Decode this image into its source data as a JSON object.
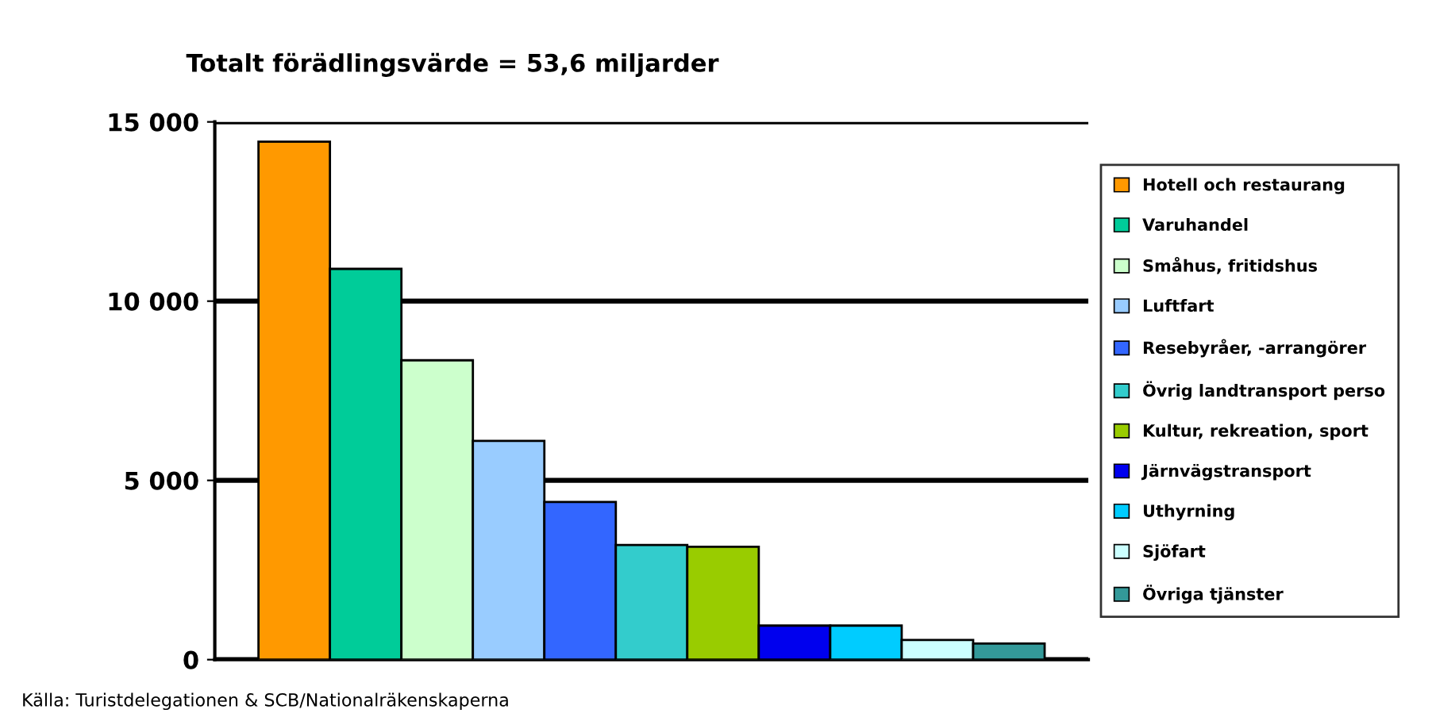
{
  "chart_data": {
    "type": "bar",
    "title": "Totalt förädlingsvärde = 53,6 miljarder",
    "categories": [
      null
    ],
    "series": [
      {
        "name": "Hotell och restaurang",
        "color": "#ff9900",
        "values": [
          14450
        ]
      },
      {
        "name": "Varuhandel",
        "color": "#00cc99",
        "values": [
          10900
        ]
      },
      {
        "name": "Småhus, fritidshus",
        "color": "#ccffcc",
        "values": [
          8350
        ]
      },
      {
        "name": "Luftfart",
        "color": "#99ccff",
        "values": [
          6100
        ]
      },
      {
        "name": "Resebyråer, -arrangörer",
        "color": "#3366ff",
        "values": [
          4400
        ]
      },
      {
        "name": "Övrig landtransport perso",
        "color": "#33cccc",
        "values": [
          3200
        ]
      },
      {
        "name": "Kultur, rekreation, sport",
        "color": "#99cc00",
        "values": [
          3150
        ]
      },
      {
        "name": "Järnvägstransport",
        "color": "#0000ee",
        "values": [
          950
        ]
      },
      {
        "name": "Uthyrning",
        "color": "#00ccff",
        "values": [
          950
        ]
      },
      {
        "name": "Sjöfart",
        "color": "#ccffff",
        "values": [
          550
        ]
      },
      {
        "name": "Övriga tjänster",
        "color": "#339999",
        "values": [
          450
        ]
      }
    ],
    "ylim": [
      0,
      15000
    ],
    "yticks": [
      {
        "value": 0,
        "label": "0"
      },
      {
        "value": 5000,
        "label": "5 000"
      },
      {
        "value": 10000,
        "label": "10 000"
      },
      {
        "value": 15000,
        "label": "15 000"
      }
    ],
    "grid": "y",
    "legend": "right",
    "annotations": [
      "Källa: Turistdelegationen & SCB/Nationalräkenskaperna"
    ]
  }
}
